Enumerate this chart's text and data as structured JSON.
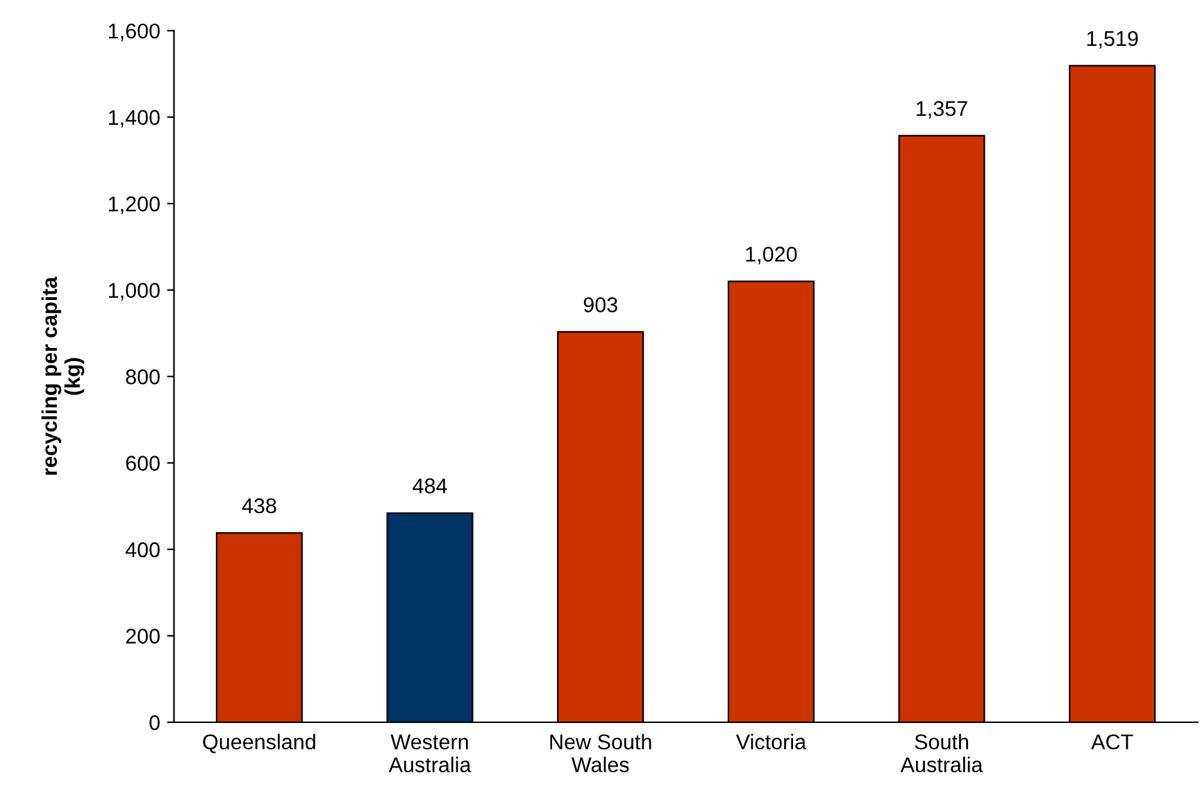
{
  "chart_data": {
    "type": "bar",
    "ylabel": "recycling per capita (kg)",
    "categories": [
      "Queensland",
      "Western Australia",
      "New South Wales",
      "Victoria",
      "South Australia",
      "ACT"
    ],
    "values": [
      438,
      484,
      903,
      1020,
      1357,
      1519
    ],
    "colors": [
      "#cc3300",
      "#003366",
      "#cc3300",
      "#cc3300",
      "#cc3300",
      "#cc3300"
    ],
    "ylim": [
      0,
      1600
    ],
    "yticks": [
      0,
      200,
      400,
      600,
      800,
      {
        "value": 1000,
        "label": "1,000"
      },
      {
        "value": 1200,
        "label": "1,200"
      },
      {
        "value": 1400,
        "label": "1,400"
      },
      {
        "value": 1600,
        "label": "1,600"
      }
    ],
    "value_labels": [
      "438",
      "484",
      "903",
      "1,020",
      "1,357",
      "1,519"
    ],
    "grid": false,
    "legend": false
  }
}
